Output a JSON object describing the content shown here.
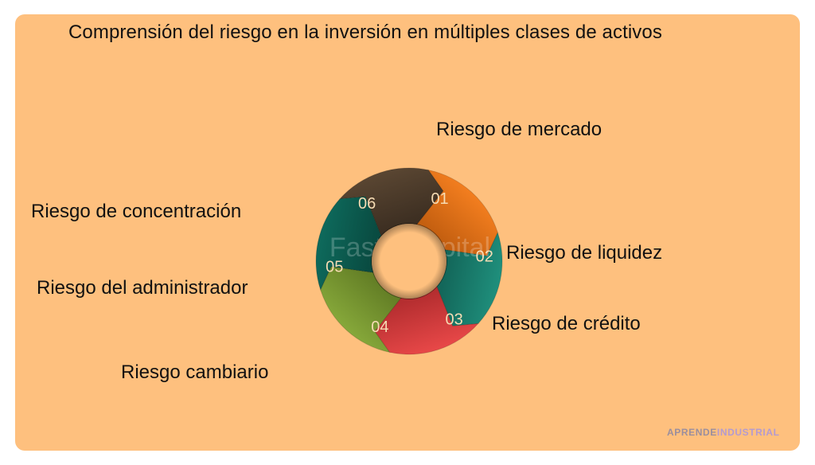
{
  "title": "Comprensión del riesgo en la inversión en múltiples clases de activos",
  "segments": [
    {
      "number": "01",
      "label": "Riesgo de mercado",
      "color": "#f37e1f",
      "dark": "#c45f10"
    },
    {
      "number": "02",
      "label": "Riesgo de liquidez",
      "color": "#1f8f7c",
      "dark": "#13675a"
    },
    {
      "number": "03",
      "label": "Riesgo de crédito",
      "color": "#e84848",
      "dark": "#b52e30"
    },
    {
      "number": "04",
      "label": "Riesgo cambiario",
      "color": "#86a83a",
      "dark": "#647f26"
    },
    {
      "number": "05",
      "label": "Riesgo del administrador",
      "color": "#0e6a5c",
      "dark": "#094b41"
    },
    {
      "number": "06",
      "label": "Riesgo de concentración",
      "color": "#5a4632",
      "dark": "#3d2f22"
    }
  ],
  "watermark": "FasterCapital",
  "brand": {
    "part1": "APRENDE",
    "part2": "INDUSTRIAL"
  },
  "colors": {
    "background": "#fec07e"
  }
}
